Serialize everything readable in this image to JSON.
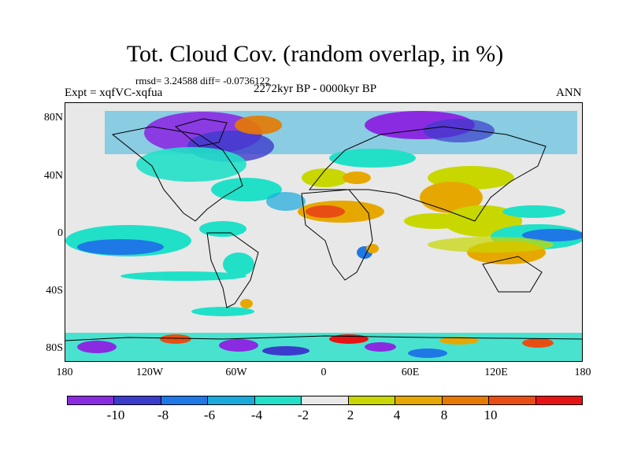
{
  "title": "Tot. Cloud Cov. (random overlap, in %)",
  "stats": "rmsd= 3.24588 diff= -0.0736122",
  "experiment": "Expt = xqfVC-xqfua",
  "period": "2272kyr BP - 0000kyr BP",
  "season": "ANN",
  "y_ticks": [
    "80N",
    "40N",
    "0",
    "40S",
    "80S"
  ],
  "x_ticks": [
    "180",
    "120W",
    "60W",
    "0",
    "60E",
    "120E",
    "180"
  ],
  "colorbar": {
    "colors": [
      "#8a2be2",
      "#3c3ccc",
      "#1e78e6",
      "#19aadc",
      "#21e0c8",
      "#e8e8e8",
      "#c8d700",
      "#e6a800",
      "#e67a00",
      "#e84e14",
      "#e61414"
    ],
    "labels": [
      "-10",
      "-8",
      "-6",
      "-4",
      "-2",
      "2",
      "4",
      "8",
      "10"
    ]
  }
}
